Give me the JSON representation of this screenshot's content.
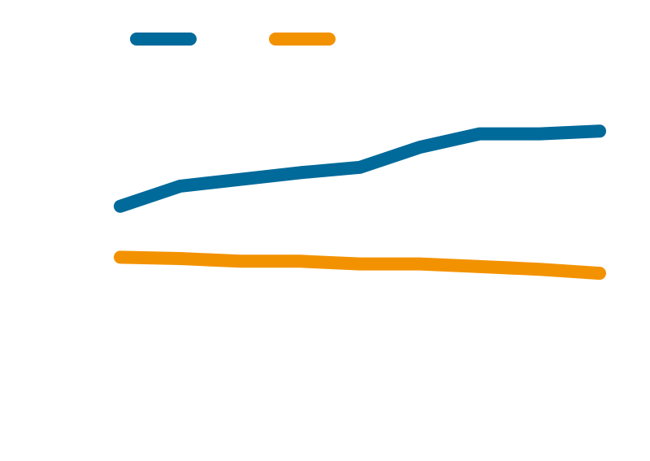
{
  "chart_data": {
    "type": "line",
    "title": "",
    "xlabel": "",
    "ylabel": "",
    "x": [
      1,
      2,
      3,
      4,
      5,
      6,
      7,
      8,
      9
    ],
    "ylim": [
      0,
      100
    ],
    "grid": false,
    "legend": "top-left",
    "series": [
      {
        "color": "#006a9a",
        "values": [
          59.5,
          67.0,
          69.5,
          72.0,
          74.0,
          81.5,
          86.5,
          86.5,
          87.5
        ]
      },
      {
        "color": "#f39200",
        "values": [
          40.5,
          40.0,
          39.0,
          39.0,
          38.0,
          38.0,
          37.0,
          36.0,
          34.5
        ]
      }
    ]
  }
}
